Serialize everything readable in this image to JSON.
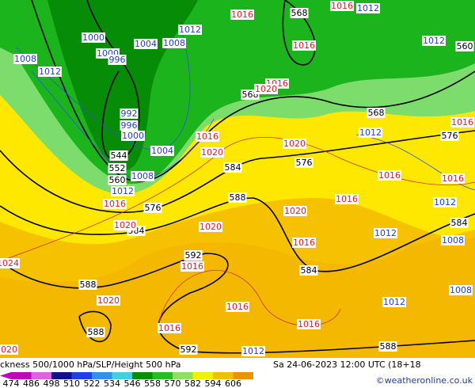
{
  "header": {
    "title": "ckness 500/1000 hPa/SLP/Height 500 hPa",
    "date": "Sa 24-06-2023 12:00 UTC (18+18",
    "credit": "©weatheronline.co.uk"
  },
  "legend": {
    "ticks": [
      "474",
      "486",
      "498",
      "510",
      "522",
      "534",
      "546",
      "558",
      "570",
      "582",
      "594",
      "606"
    ],
    "colors": [
      "#c000c0",
      "#e060e0",
      "#101090",
      "#2040e0",
      "#3090f0",
      "#40d0e0",
      "#009000",
      "#20c020",
      "#90e060",
      "#f0f000",
      "#f0c000",
      "#f09000"
    ]
  },
  "height_labels": [
    "568",
    "560",
    "568",
    "568",
    "576",
    "576",
    "584",
    "544",
    "552",
    "560",
    "576",
    "584",
    "588",
    "584",
    "592",
    "584",
    "588",
    "588",
    "592",
    "588"
  ],
  "pressure_labels_low": [
    "1000",
    "1000",
    "996",
    "1004",
    "1008",
    "1012",
    "1012",
    "1012",
    "1008",
    "1012",
    "992",
    "996",
    "1000",
    "1004",
    "1008",
    "1012",
    "1012",
    "1012",
    "1012",
    "1008",
    "1008",
    "1012",
    "1012"
  ],
  "pressure_labels_high": [
    "1016",
    "1016",
    "1016",
    "1016",
    "1020",
    "1016",
    "1016",
    "1020",
    "1020",
    "1016",
    "1016",
    "1016",
    "1016",
    "1020",
    "1020",
    "1020",
    "1016",
    "1016",
    "1024",
    "1020",
    "1016",
    "1016",
    "1016",
    "1020"
  ]
}
